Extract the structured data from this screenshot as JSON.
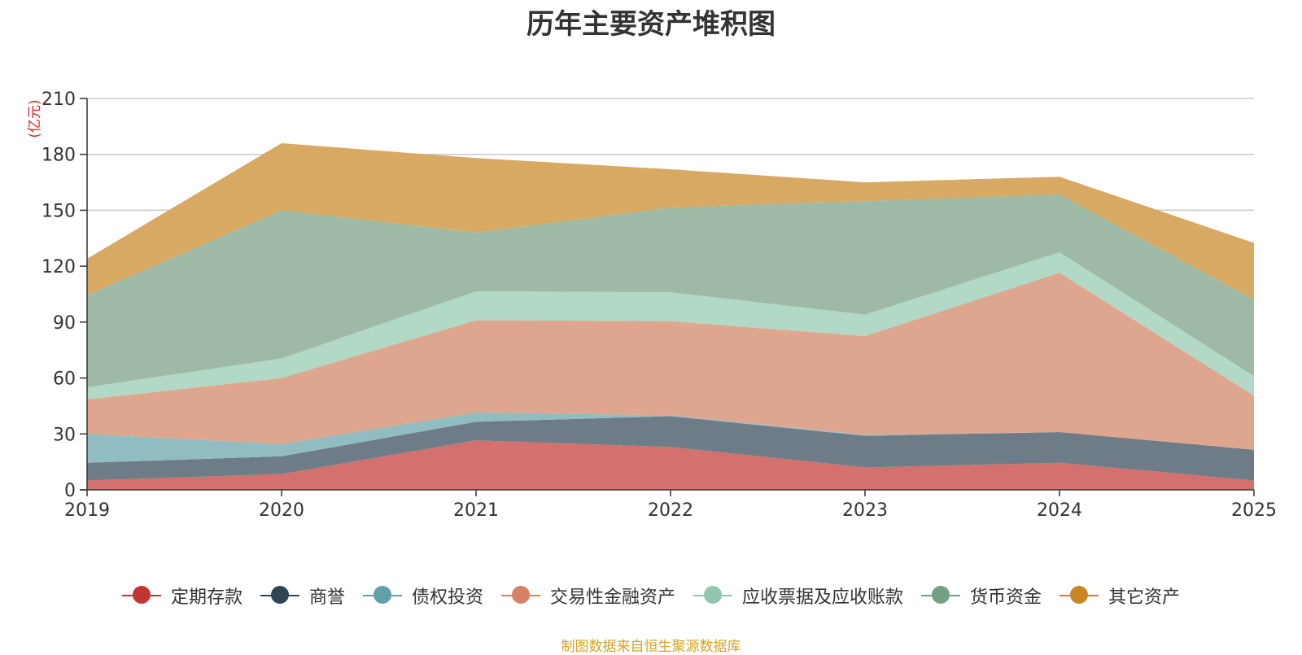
{
  "source_note": "制图数据来自恒生聚源数据库",
  "chart_data": {
    "type": "area",
    "stacked": true,
    "title": "历年主要资产堆积图",
    "y_unit": "(亿元)",
    "x": [
      "2019",
      "2020",
      "2021",
      "2022",
      "2023",
      "2024",
      "2025"
    ],
    "ylim": [
      0,
      210
    ],
    "yticks": [
      0,
      30,
      60,
      90,
      120,
      150,
      180,
      210
    ],
    "grid": true,
    "legend_position": "bottom",
    "series": [
      {
        "name": "定期存款",
        "color": "#c23531",
        "area_color": "#d4706e",
        "values": [
          5,
          8.5,
          26.5,
          23,
          12,
          14.5,
          5
        ]
      },
      {
        "name": "商誉",
        "color": "#2f4554",
        "area_color": "#6e7c87",
        "values": [
          9.5,
          9.5,
          10,
          16.5,
          17,
          16.5,
          16.5
        ]
      },
      {
        "name": "债权投资",
        "color": "#61a0a8",
        "area_color": "#90bcc2",
        "values": [
          15.5,
          6.5,
          5,
          0.5,
          0.5,
          0,
          0
        ]
      },
      {
        "name": "交易性金融资产",
        "color": "#d48265",
        "area_color": "#dfa68f",
        "values": [
          18.5,
          35.5,
          49.5,
          50.5,
          53,
          85.5,
          29
        ]
      },
      {
        "name": "应收票据及应收账款",
        "color": "#91c7ae",
        "area_color": "#b2d8c6",
        "values": [
          6.5,
          10.5,
          15.5,
          15.5,
          11.5,
          11,
          10.5
        ]
      },
      {
        "name": "货币资金",
        "color": "#749f83",
        "area_color": "#9eb9a6",
        "values": [
          49.5,
          79.5,
          31.5,
          45.5,
          61,
          31,
          41
        ]
      },
      {
        "name": "其它资产",
        "color": "#ca8622",
        "area_color": "#d8a962",
        "values": [
          19.5,
          36,
          40,
          20.5,
          10,
          9.5,
          30.5
        ]
      }
    ]
  }
}
